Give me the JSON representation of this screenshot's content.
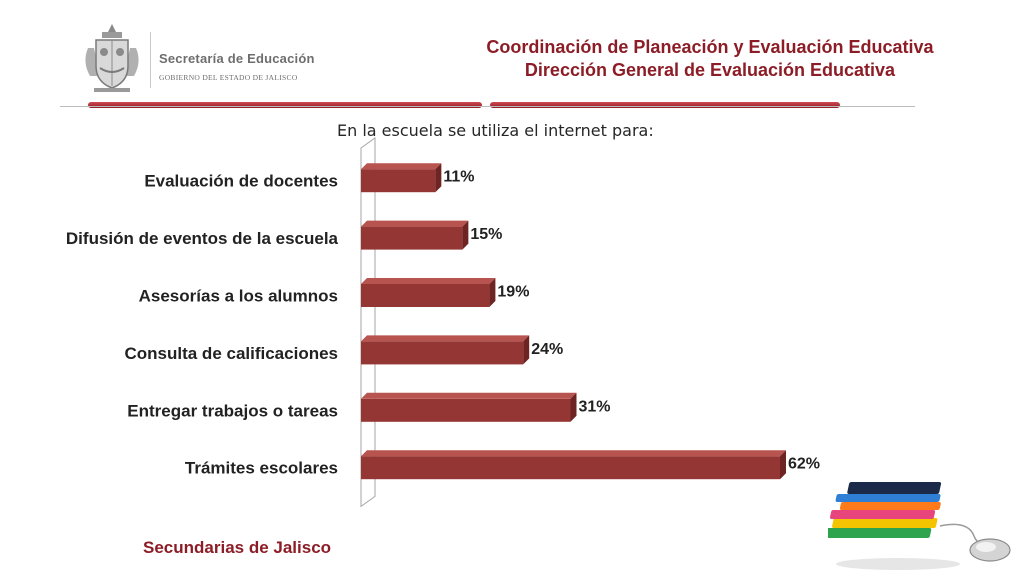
{
  "header": {
    "org_name": "Secretaría de Educación",
    "gov_name": "GOBIERNO DEL ESTADO DE JALISCO",
    "title_line1": "Coordinación de Planeación y Evaluación Educativa",
    "title_line2": "Dirección General de Evaluación Educativa",
    "brand_color": "#8c1d26"
  },
  "footer": {
    "text": "Secundarias de Jalisco"
  },
  "chart_data": {
    "type": "bar",
    "orientation": "horizontal",
    "title": "En la escuela se utiliza el internet para:",
    "categories": [
      "Evaluación de docentes",
      "Difusión de eventos de la escuela",
      "Asesorías a los alumnos",
      "Consulta de calificaciones",
      "Entregar trabajos o tareas",
      "Trámites escolares"
    ],
    "values": [
      11,
      15,
      19,
      24,
      31,
      62
    ],
    "value_labels": [
      "11%",
      "15%",
      "19%",
      "24%",
      "31%",
      "62%"
    ],
    "xlim": [
      0,
      62
    ],
    "bar_color": "#943634",
    "grid": false,
    "legend": false
  },
  "icons": {
    "seal": "jalisco-coat-of-arms-icon",
    "books": "books-and-mouse-icon"
  }
}
